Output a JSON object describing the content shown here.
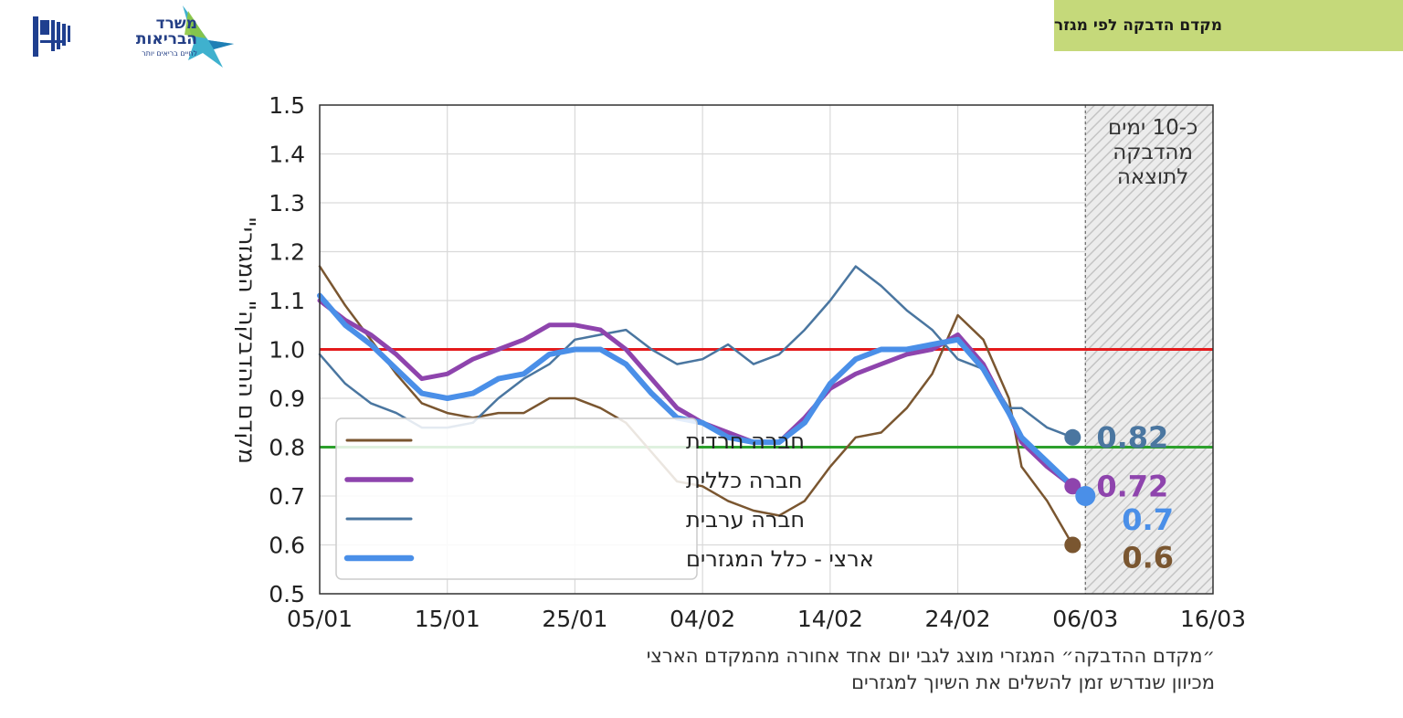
{
  "header": {
    "title": "מקדם הדבקה לפי מגזר",
    "logo": {
      "line1": "משרד",
      "line2": "הבריאות",
      "line3": "לחיים בריאים יותר"
    }
  },
  "colors": {
    "banner": "#c5d97a",
    "haredi": "#7a5630",
    "general": "#8e44ad",
    "arab": "#4a76a0",
    "national": "#4a8fe8",
    "threshold_high": "#e41a1c",
    "threshold_low": "#2ca02c"
  },
  "shade_label": [
    "כ-10 ימים",
    "מהדבקה",
    "לתוצאה"
  ],
  "footnote": [
    "״מקדם ההדבקה״ המגזרי מוצג לגבי יום אחד אחורה מהמקדם הארצי",
    "מכיוון שנדרש זמן להשלים את השיוך למגזרים"
  ],
  "chart_data": {
    "type": "line",
    "ylabel": "\"מקדם ההדבקה\" המגזרי",
    "xlabel": "",
    "ylim": [
      0.5,
      1.5
    ],
    "yticks": [
      "0.5",
      "0.6",
      "0.7",
      "0.8",
      "0.9",
      "1.0",
      "1.1",
      "1.2",
      "1.3",
      "1.4",
      "1.5"
    ],
    "xticks": [
      "05/01",
      "15/01",
      "25/01",
      "04/02",
      "14/02",
      "24/02",
      "06/03",
      "16/03"
    ],
    "grid": true,
    "legend_position": "bottom-left",
    "reference_lines": [
      1.0,
      0.8
    ],
    "shaded_region": [
      "06/03",
      "16/03"
    ],
    "series": [
      {
        "name": "חברה חרדית",
        "color_key": "haredi",
        "x": [
          "05/01",
          "07/01",
          "09/01",
          "11/01",
          "13/01",
          "15/01",
          "17/01",
          "19/01",
          "21/01",
          "23/01",
          "25/01",
          "27/01",
          "29/01",
          "31/01",
          "02/02",
          "04/02",
          "06/02",
          "08/02",
          "10/02",
          "12/02",
          "14/02",
          "16/02",
          "18/02",
          "20/02",
          "22/02",
          "24/02",
          "26/02",
          "28/02",
          "01/03",
          "03/03",
          "05/03"
        ],
        "values": [
          1.17,
          1.09,
          1.02,
          0.95,
          0.89,
          0.87,
          0.86,
          0.87,
          0.87,
          0.9,
          0.9,
          0.88,
          0.85,
          0.79,
          0.73,
          0.72,
          0.69,
          0.67,
          0.66,
          0.69,
          0.76,
          0.82,
          0.83,
          0.88,
          0.95,
          1.07,
          1.02,
          0.9,
          0.76,
          0.69,
          0.6
        ],
        "end_label": "0.6"
      },
      {
        "name": "חברה כללית",
        "color_key": "general",
        "x": [
          "05/01",
          "07/01",
          "09/01",
          "11/01",
          "13/01",
          "15/01",
          "17/01",
          "19/01",
          "21/01",
          "23/01",
          "25/01",
          "27/01",
          "29/01",
          "31/01",
          "02/02",
          "04/02",
          "06/02",
          "08/02",
          "10/02",
          "12/02",
          "14/02",
          "16/02",
          "18/02",
          "20/02",
          "22/02",
          "24/02",
          "26/02",
          "28/02",
          "01/03",
          "03/03",
          "05/03"
        ],
        "values": [
          1.1,
          1.06,
          1.03,
          0.99,
          0.94,
          0.95,
          0.98,
          1.0,
          1.02,
          1.05,
          1.05,
          1.04,
          1.0,
          0.94,
          0.88,
          0.85,
          0.83,
          0.81,
          0.81,
          0.86,
          0.92,
          0.95,
          0.97,
          0.99,
          1.0,
          1.03,
          0.97,
          0.87,
          0.81,
          0.76,
          0.72
        ],
        "end_label": "0.72"
      },
      {
        "name": "חברה ערבית",
        "color_key": "arab",
        "x": [
          "05/01",
          "07/01",
          "09/01",
          "11/01",
          "13/01",
          "15/01",
          "17/01",
          "19/01",
          "21/01",
          "23/01",
          "25/01",
          "27/01",
          "29/01",
          "31/01",
          "02/02",
          "04/02",
          "06/02",
          "08/02",
          "10/02",
          "12/02",
          "14/02",
          "16/02",
          "18/02",
          "20/02",
          "22/02",
          "24/02",
          "26/02",
          "28/02",
          "01/03",
          "03/03",
          "05/03"
        ],
        "values": [
          0.99,
          0.93,
          0.89,
          0.87,
          0.84,
          0.84,
          0.85,
          0.9,
          0.94,
          0.97,
          1.02,
          1.03,
          1.04,
          1.0,
          0.97,
          0.98,
          1.01,
          0.97,
          0.99,
          1.04,
          1.1,
          1.17,
          1.13,
          1.08,
          1.04,
          0.98,
          0.96,
          0.88,
          0.88,
          0.84,
          0.82
        ],
        "end_label": "0.82"
      },
      {
        "name": "ארצי - כלל המגזרים",
        "color_key": "national",
        "x": [
          "05/01",
          "07/01",
          "09/01",
          "11/01",
          "13/01",
          "15/01",
          "17/01",
          "19/01",
          "21/01",
          "23/01",
          "25/01",
          "27/01",
          "29/01",
          "31/01",
          "02/02",
          "04/02",
          "06/02",
          "08/02",
          "10/02",
          "12/02",
          "14/02",
          "16/02",
          "18/02",
          "20/02",
          "22/02",
          "24/02",
          "26/02",
          "28/02",
          "01/03",
          "03/03",
          "05/03",
          "06/03"
        ],
        "values": [
          1.11,
          1.05,
          1.01,
          0.96,
          0.91,
          0.9,
          0.91,
          0.94,
          0.95,
          0.99,
          1.0,
          1.0,
          0.97,
          0.91,
          0.86,
          0.85,
          0.82,
          0.81,
          0.81,
          0.85,
          0.93,
          0.98,
          1.0,
          1.0,
          1.01,
          1.02,
          0.96,
          0.87,
          0.82,
          0.77,
          0.72,
          0.7
        ],
        "end_label": "0.7"
      }
    ]
  }
}
